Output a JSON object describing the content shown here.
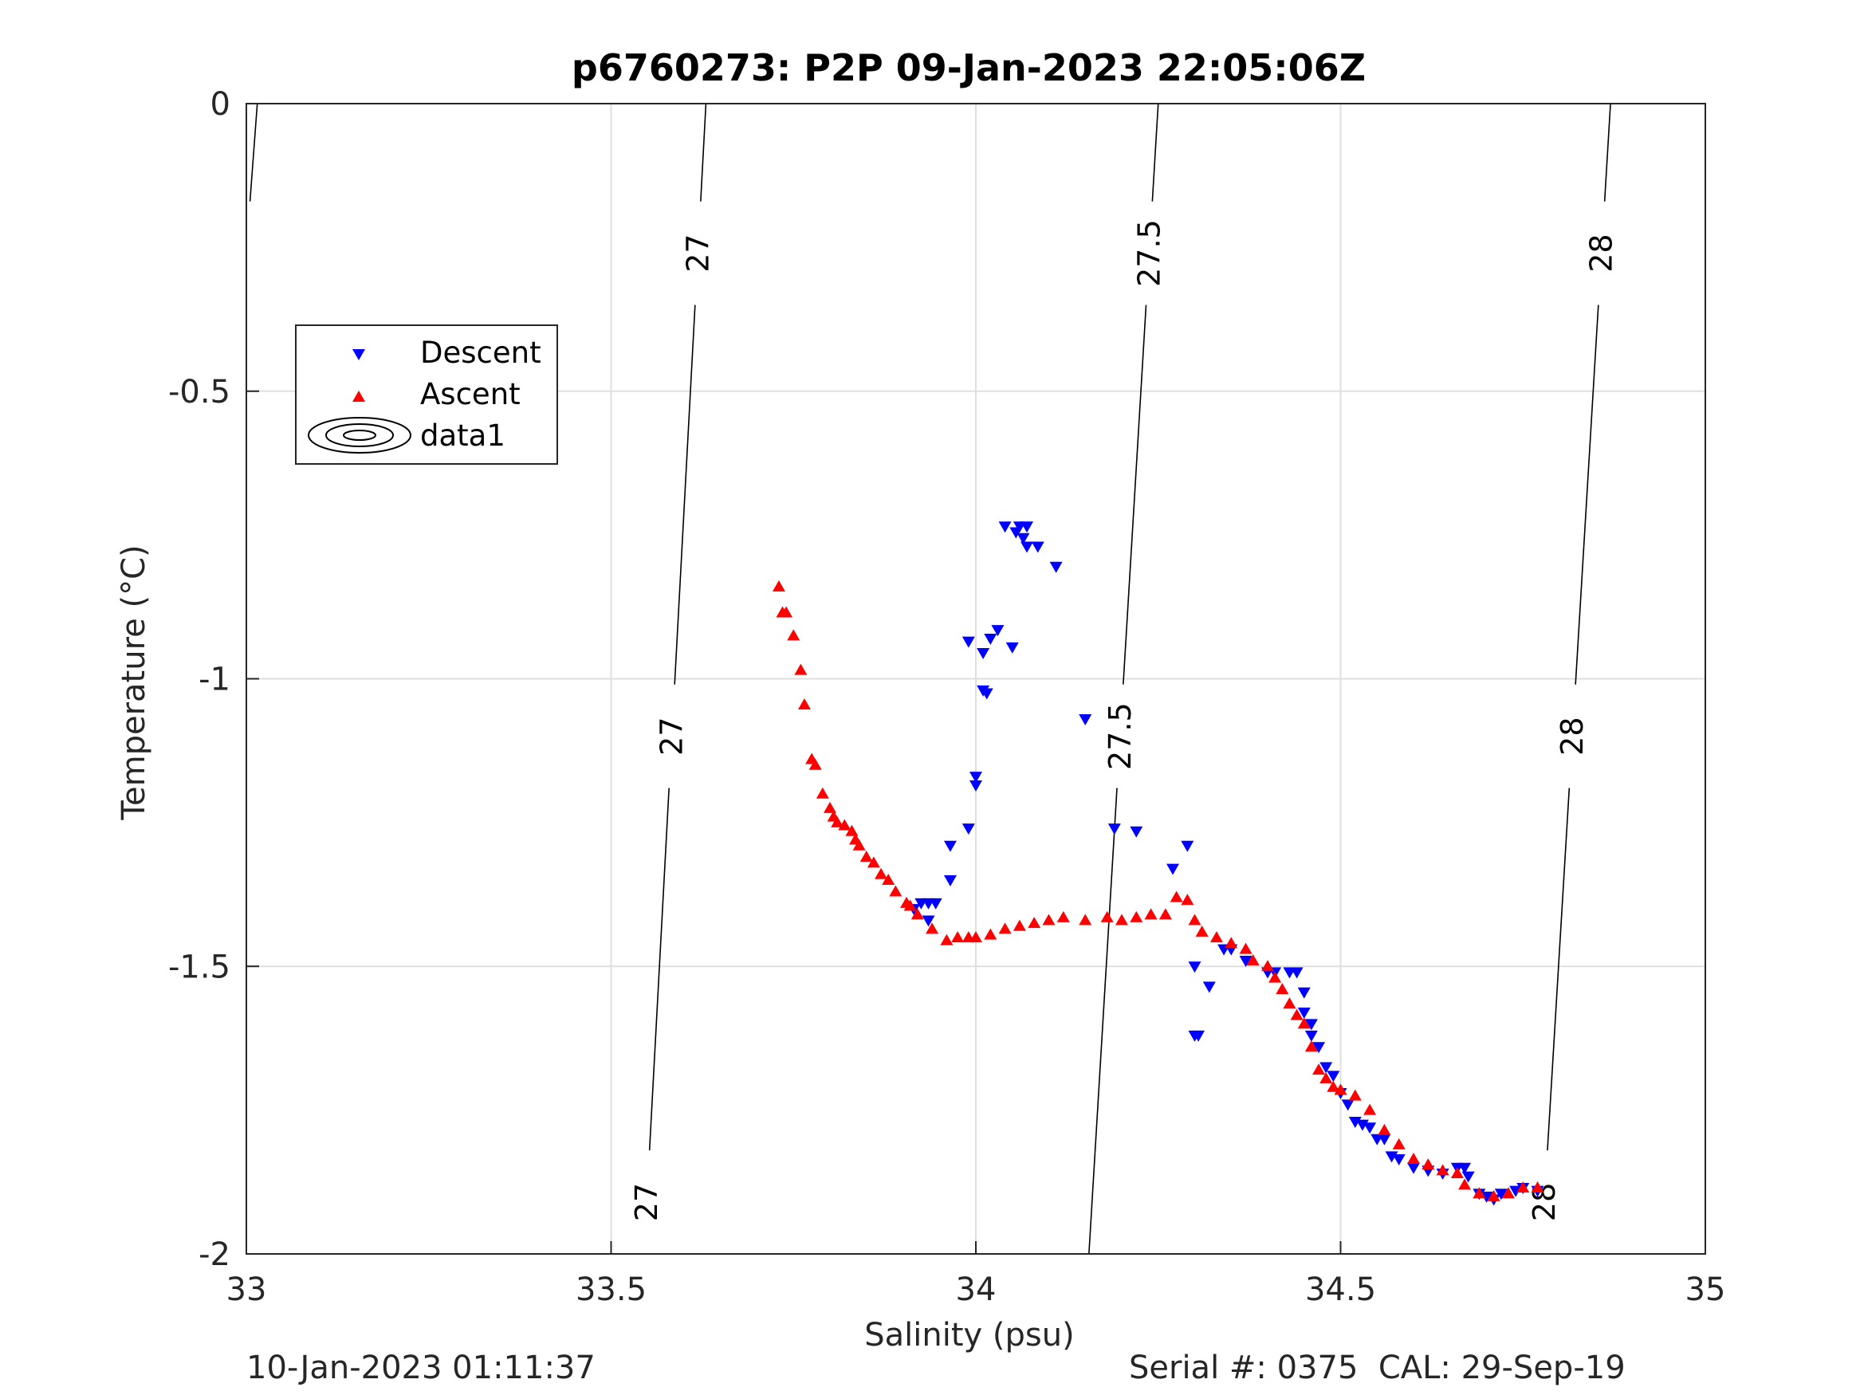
{
  "chart_data": {
    "type": "scatter",
    "title": "p6760273: P2P 09-Jan-2023 22:05:06Z",
    "xlabel": "Salinity (psu)",
    "ylabel": "Temperature (°C)",
    "xlim": [
      33,
      35
    ],
    "ylim": [
      -2,
      0
    ],
    "xticks": [
      "33",
      "33.5",
      "34",
      "34.5",
      "35"
    ],
    "xtick_values": [
      33,
      33.5,
      34,
      34.5,
      35
    ],
    "yticks": [
      "0",
      "-0.5",
      "-1",
      "-1.5",
      "-2"
    ],
    "ytick_values": [
      0,
      -0.5,
      -1,
      -1.5,
      -2
    ],
    "grid": true,
    "legend_position": "upper-left",
    "legend": [
      "Descent",
      "Ascent",
      "data1"
    ],
    "series": [
      {
        "name": "Descent",
        "marker": "triangle-down",
        "color": "#0000ff",
        "points": [
          [
            34.04,
            -0.735
          ],
          [
            34.06,
            -0.735
          ],
          [
            34.07,
            -0.735
          ],
          [
            34.055,
            -0.745
          ],
          [
            34.065,
            -0.755
          ],
          [
            34.07,
            -0.77
          ],
          [
            34.085,
            -0.77
          ],
          [
            34.11,
            -0.805
          ],
          [
            33.99,
            -0.935
          ],
          [
            34.02,
            -0.93
          ],
          [
            34.03,
            -0.915
          ],
          [
            34.01,
            -0.955
          ],
          [
            34.05,
            -0.945
          ],
          [
            34.01,
            -1.02
          ],
          [
            34.015,
            -1.025
          ],
          [
            34.15,
            -1.07
          ],
          [
            34.0,
            -1.17
          ],
          [
            34.0,
            -1.185
          ],
          [
            34.19,
            -1.26
          ],
          [
            34.22,
            -1.265
          ],
          [
            33.99,
            -1.26
          ],
          [
            33.965,
            -1.29
          ],
          [
            33.965,
            -1.35
          ],
          [
            34.29,
            -1.29
          ],
          [
            34.27,
            -1.33
          ],
          [
            33.925,
            -1.39
          ],
          [
            33.935,
            -1.39
          ],
          [
            33.945,
            -1.39
          ],
          [
            33.935,
            -1.42
          ],
          [
            33.915,
            -1.4
          ],
          [
            34.3,
            -1.5
          ],
          [
            34.32,
            -1.535
          ],
          [
            34.3,
            -1.62
          ],
          [
            34.305,
            -1.62
          ],
          [
            34.34,
            -1.47
          ],
          [
            34.35,
            -1.47
          ],
          [
            34.37,
            -1.49
          ],
          [
            34.4,
            -1.51
          ],
          [
            34.41,
            -1.51
          ],
          [
            34.43,
            -1.51
          ],
          [
            34.44,
            -1.51
          ],
          [
            34.45,
            -1.545
          ],
          [
            34.45,
            -1.58
          ],
          [
            34.46,
            -1.6
          ],
          [
            34.46,
            -1.62
          ],
          [
            34.47,
            -1.64
          ],
          [
            34.48,
            -1.675
          ],
          [
            34.49,
            -1.69
          ],
          [
            34.5,
            -1.72
          ],
          [
            34.51,
            -1.74
          ],
          [
            34.52,
            -1.77
          ],
          [
            34.53,
            -1.775
          ],
          [
            34.54,
            -1.78
          ],
          [
            34.55,
            -1.8
          ],
          [
            34.56,
            -1.8
          ],
          [
            34.57,
            -1.83
          ],
          [
            34.58,
            -1.835
          ],
          [
            34.6,
            -1.85
          ],
          [
            34.62,
            -1.855
          ],
          [
            34.64,
            -1.86
          ],
          [
            34.66,
            -1.85
          ],
          [
            34.67,
            -1.85
          ],
          [
            34.675,
            -1.865
          ],
          [
            34.69,
            -1.895
          ],
          [
            34.7,
            -1.9
          ],
          [
            34.71,
            -1.905
          ],
          [
            34.72,
            -1.895
          ],
          [
            34.74,
            -1.89
          ],
          [
            34.75,
            -1.885
          ],
          [
            34.77,
            -1.89
          ]
        ]
      },
      {
        "name": "Ascent",
        "marker": "triangle-up",
        "color": "#ff0000",
        "points": [
          [
            33.73,
            -0.84
          ],
          [
            33.735,
            -0.885
          ],
          [
            33.74,
            -0.885
          ],
          [
            33.75,
            -0.925
          ],
          [
            33.76,
            -0.985
          ],
          [
            33.765,
            -1.045
          ],
          [
            33.775,
            -1.14
          ],
          [
            33.78,
            -1.15
          ],
          [
            33.79,
            -1.2
          ],
          [
            33.8,
            -1.225
          ],
          [
            33.805,
            -1.24
          ],
          [
            33.81,
            -1.25
          ],
          [
            33.82,
            -1.255
          ],
          [
            33.83,
            -1.265
          ],
          [
            33.835,
            -1.28
          ],
          [
            33.84,
            -1.29
          ],
          [
            33.85,
            -1.31
          ],
          [
            33.86,
            -1.32
          ],
          [
            33.87,
            -1.34
          ],
          [
            33.88,
            -1.35
          ],
          [
            33.89,
            -1.37
          ],
          [
            33.905,
            -1.39
          ],
          [
            33.91,
            -1.395
          ],
          [
            33.92,
            -1.41
          ],
          [
            33.94,
            -1.435
          ],
          [
            33.96,
            -1.455
          ],
          [
            33.975,
            -1.45
          ],
          [
            33.99,
            -1.45
          ],
          [
            34.0,
            -1.45
          ],
          [
            34.02,
            -1.445
          ],
          [
            34.04,
            -1.435
          ],
          [
            34.06,
            -1.43
          ],
          [
            34.08,
            -1.425
          ],
          [
            34.1,
            -1.42
          ],
          [
            34.12,
            -1.415
          ],
          [
            34.15,
            -1.42
          ],
          [
            34.18,
            -1.415
          ],
          [
            34.2,
            -1.42
          ],
          [
            34.22,
            -1.415
          ],
          [
            34.24,
            -1.41
          ],
          [
            34.26,
            -1.41
          ],
          [
            34.275,
            -1.38
          ],
          [
            34.29,
            -1.385
          ],
          [
            34.3,
            -1.42
          ],
          [
            34.31,
            -1.44
          ],
          [
            34.33,
            -1.45
          ],
          [
            34.35,
            -1.46
          ],
          [
            34.37,
            -1.47
          ],
          [
            34.38,
            -1.49
          ],
          [
            34.4,
            -1.5
          ],
          [
            34.41,
            -1.52
          ],
          [
            34.42,
            -1.54
          ],
          [
            34.43,
            -1.565
          ],
          [
            34.44,
            -1.585
          ],
          [
            34.45,
            -1.6
          ],
          [
            34.46,
            -1.64
          ],
          [
            34.47,
            -1.68
          ],
          [
            34.48,
            -1.695
          ],
          [
            34.49,
            -1.71
          ],
          [
            34.5,
            -1.715
          ],
          [
            34.52,
            -1.725
          ],
          [
            34.54,
            -1.75
          ],
          [
            34.56,
            -1.785
          ],
          [
            34.58,
            -1.81
          ],
          [
            34.6,
            -1.835
          ],
          [
            34.62,
            -1.845
          ],
          [
            34.64,
            -1.855
          ],
          [
            34.66,
            -1.86
          ],
          [
            34.67,
            -1.88
          ],
          [
            34.69,
            -1.895
          ],
          [
            34.71,
            -1.9
          ],
          [
            34.73,
            -1.895
          ],
          [
            34.75,
            -1.885
          ],
          [
            34.77,
            -1.885
          ]
        ]
      },
      {
        "name": "data1",
        "type": "contour",
        "color": "#000000",
        "levels": [
          {
            "value": "27",
            "labels": [
              "27",
              "27",
              "27"
            ],
            "s_top": 33.63,
            "s_bottom": 33.545
          },
          {
            "value": "27.5",
            "labels": [
              "27.5",
              "27.5"
            ],
            "s_top": 34.25,
            "s_bottom": 34.155
          },
          {
            "value": "28",
            "labels": [
              "28",
              "28",
              "28"
            ],
            "s_top": 34.87,
            "s_bottom": 34.775
          }
        ],
        "edge_stub": [
          [
            33.005,
            -0.17
          ],
          [
            33.015,
            0
          ]
        ]
      }
    ]
  },
  "footer": {
    "left": "10-Jan-2023 01:11:37",
    "right": "Serial #: 0375  CAL: 29-Sep-19"
  },
  "colors": {
    "descent": "#0000ff",
    "ascent": "#ff0000",
    "grid": "#dfdfdf",
    "axes": "#262626"
  }
}
